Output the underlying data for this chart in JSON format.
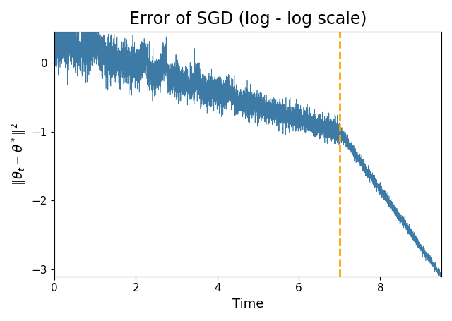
{
  "title": "Error of SGD (log - log scale)",
  "xlabel": "Time",
  "ylabel": "$\\|\\theta_t - \\theta^*\\|^2$",
  "xlim": [
    0,
    9.5
  ],
  "ylim": [
    -3.1,
    0.45
  ],
  "yticks": [
    0,
    -1,
    -2,
    -3
  ],
  "xticks": [
    0,
    2,
    4,
    6,
    8
  ],
  "line_color": "#3274a1",
  "vline_x": 7.0,
  "vline_color": "#FFA500",
  "num_points": 8000,
  "seed": 42,
  "x_start": 0.01,
  "x_end": 9.5,
  "figsize": [
    6.4,
    4.55
  ],
  "dpi": 100,
  "title_fontsize": 17,
  "label_fontsize": 13
}
